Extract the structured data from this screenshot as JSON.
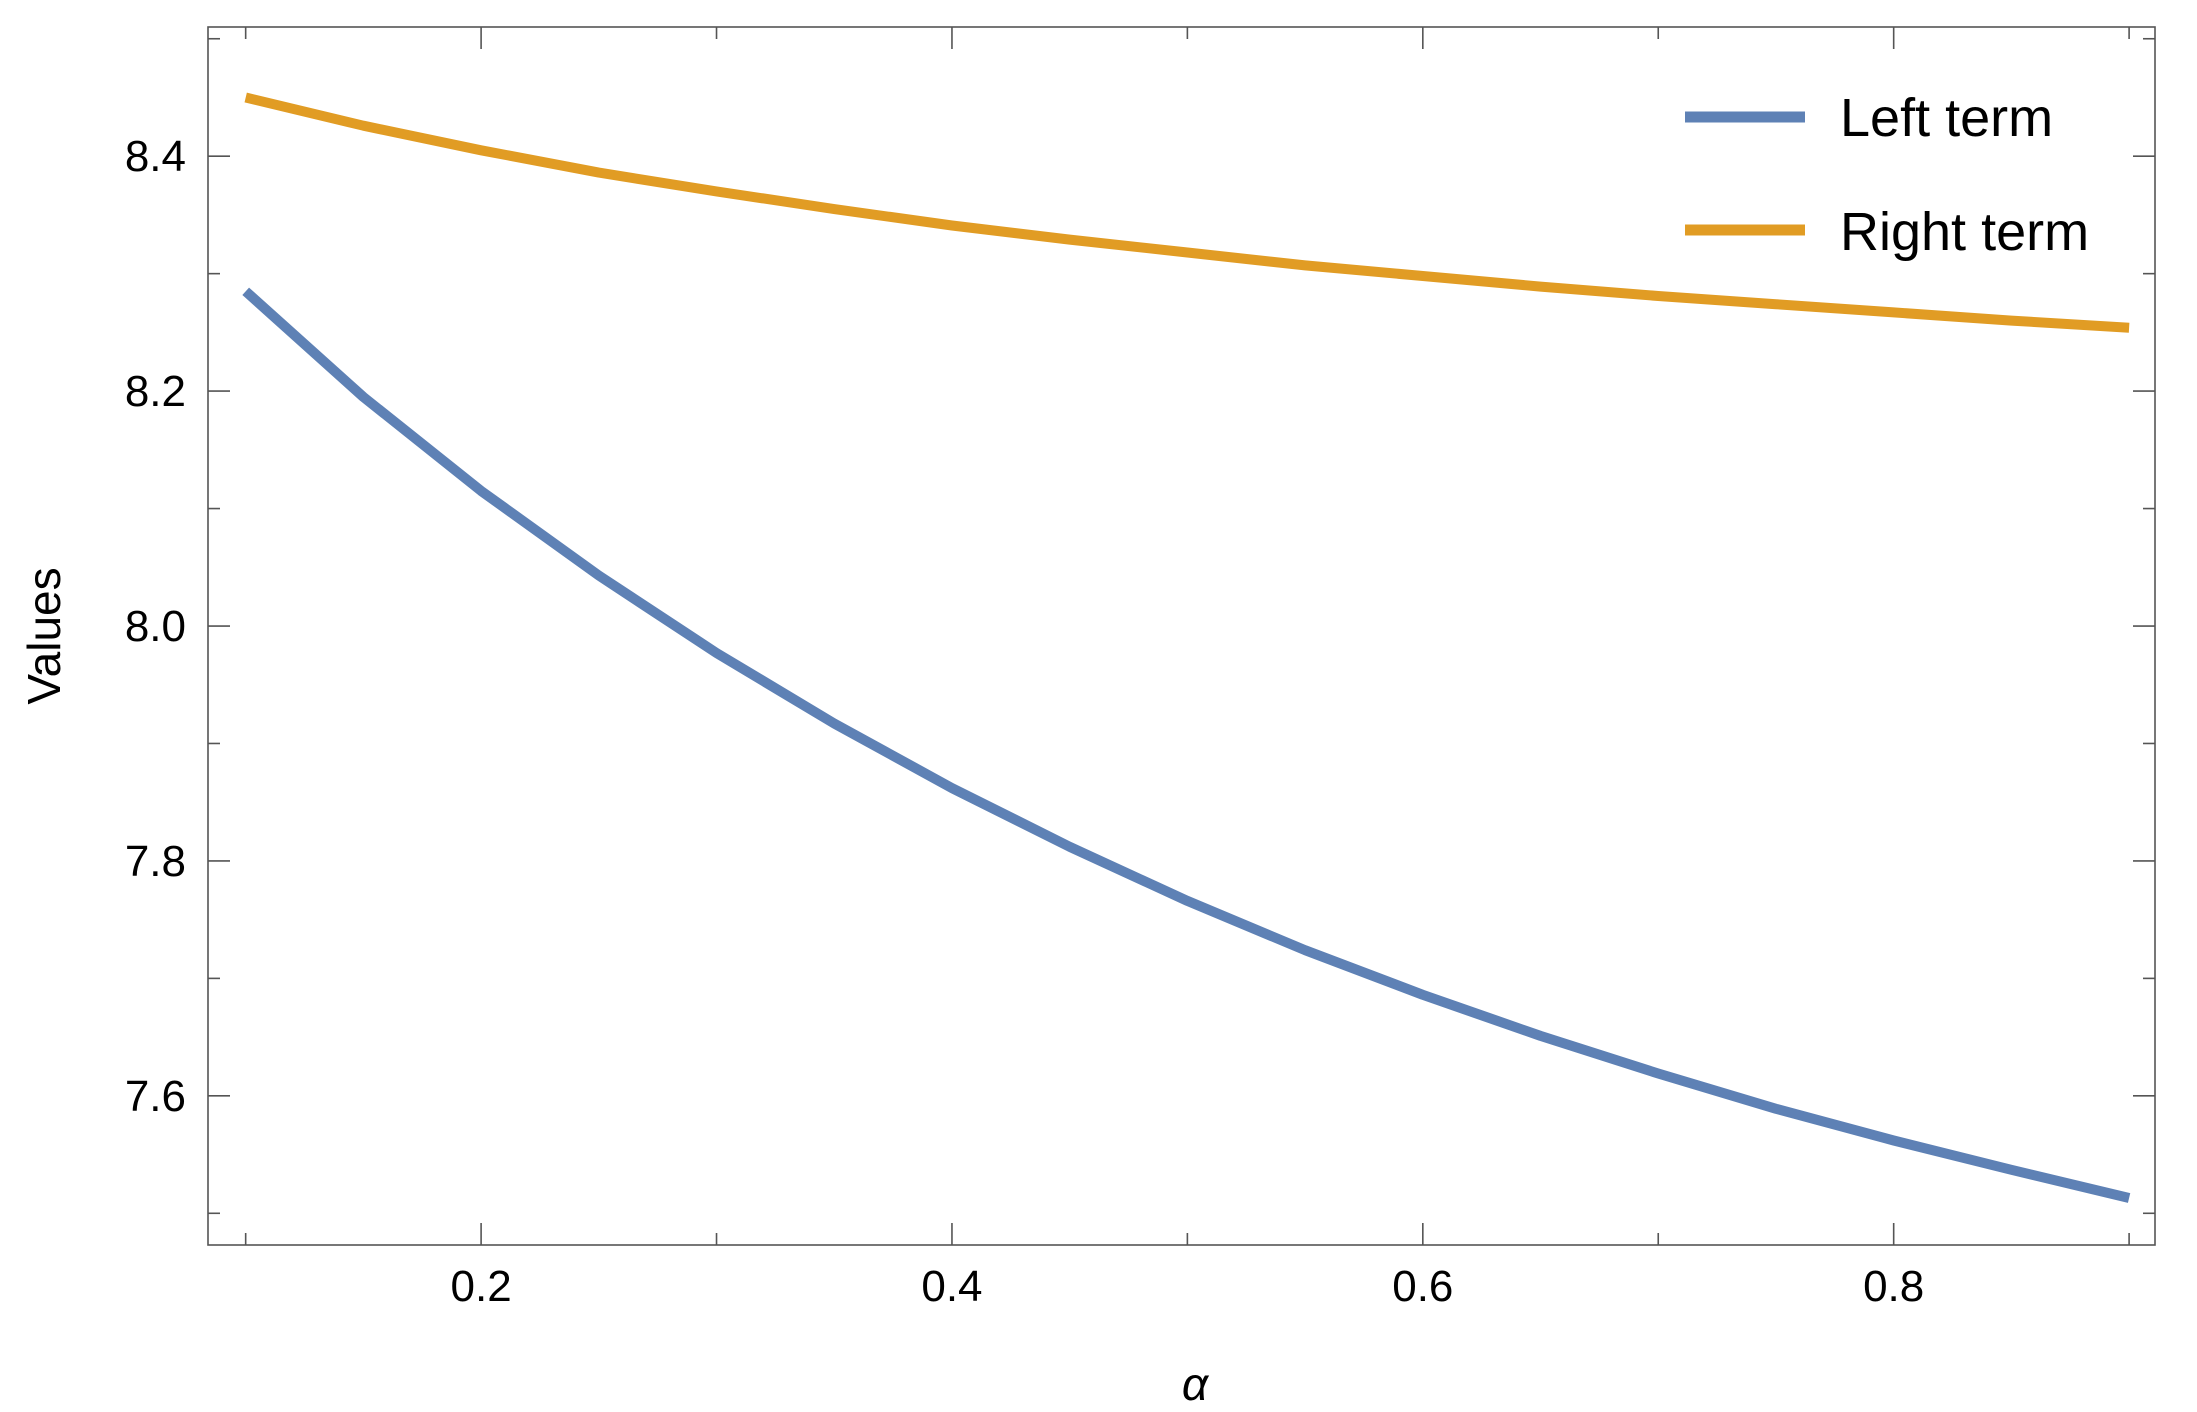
{
  "chart_data": {
    "type": "line",
    "xlabel": "α",
    "ylabel": "Values",
    "xlim": [
      0.084,
      0.911
    ],
    "ylim": [
      7.473,
      8.51
    ],
    "x_ticks_major": [
      0.2,
      0.4,
      0.6,
      0.8
    ],
    "x_tick_labels": [
      "0.2",
      "0.4",
      "0.6",
      "0.8"
    ],
    "y_ticks_major": [
      7.6,
      7.8,
      8.0,
      8.2,
      8.4
    ],
    "y_tick_labels": [
      "7.6",
      "7.8",
      "8.0",
      "8.2",
      "8.4"
    ],
    "grid": false,
    "legend_position": "top-right",
    "series": [
      {
        "name": "Left term",
        "color": "#5e81b5",
        "x": [
          0.1,
          0.15,
          0.2,
          0.25,
          0.3,
          0.35,
          0.4,
          0.45,
          0.5,
          0.55,
          0.6,
          0.65,
          0.7,
          0.75,
          0.8,
          0.85,
          0.9
        ],
        "y": [
          8.285,
          8.195,
          8.115,
          8.043,
          7.977,
          7.917,
          7.862,
          7.812,
          7.766,
          7.724,
          7.686,
          7.651,
          7.619,
          7.589,
          7.562,
          7.537,
          7.513
        ]
      },
      {
        "name": "Right term",
        "color": "#e19c24",
        "x": [
          0.1,
          0.15,
          0.2,
          0.25,
          0.3,
          0.35,
          0.4,
          0.45,
          0.5,
          0.55,
          0.6,
          0.65,
          0.7,
          0.75,
          0.8,
          0.85,
          0.9
        ],
        "y": [
          8.45,
          8.426,
          8.405,
          8.386,
          8.37,
          8.355,
          8.341,
          8.329,
          8.318,
          8.307,
          8.298,
          8.289,
          8.281,
          8.274,
          8.267,
          8.26,
          8.254
        ]
      }
    ]
  }
}
